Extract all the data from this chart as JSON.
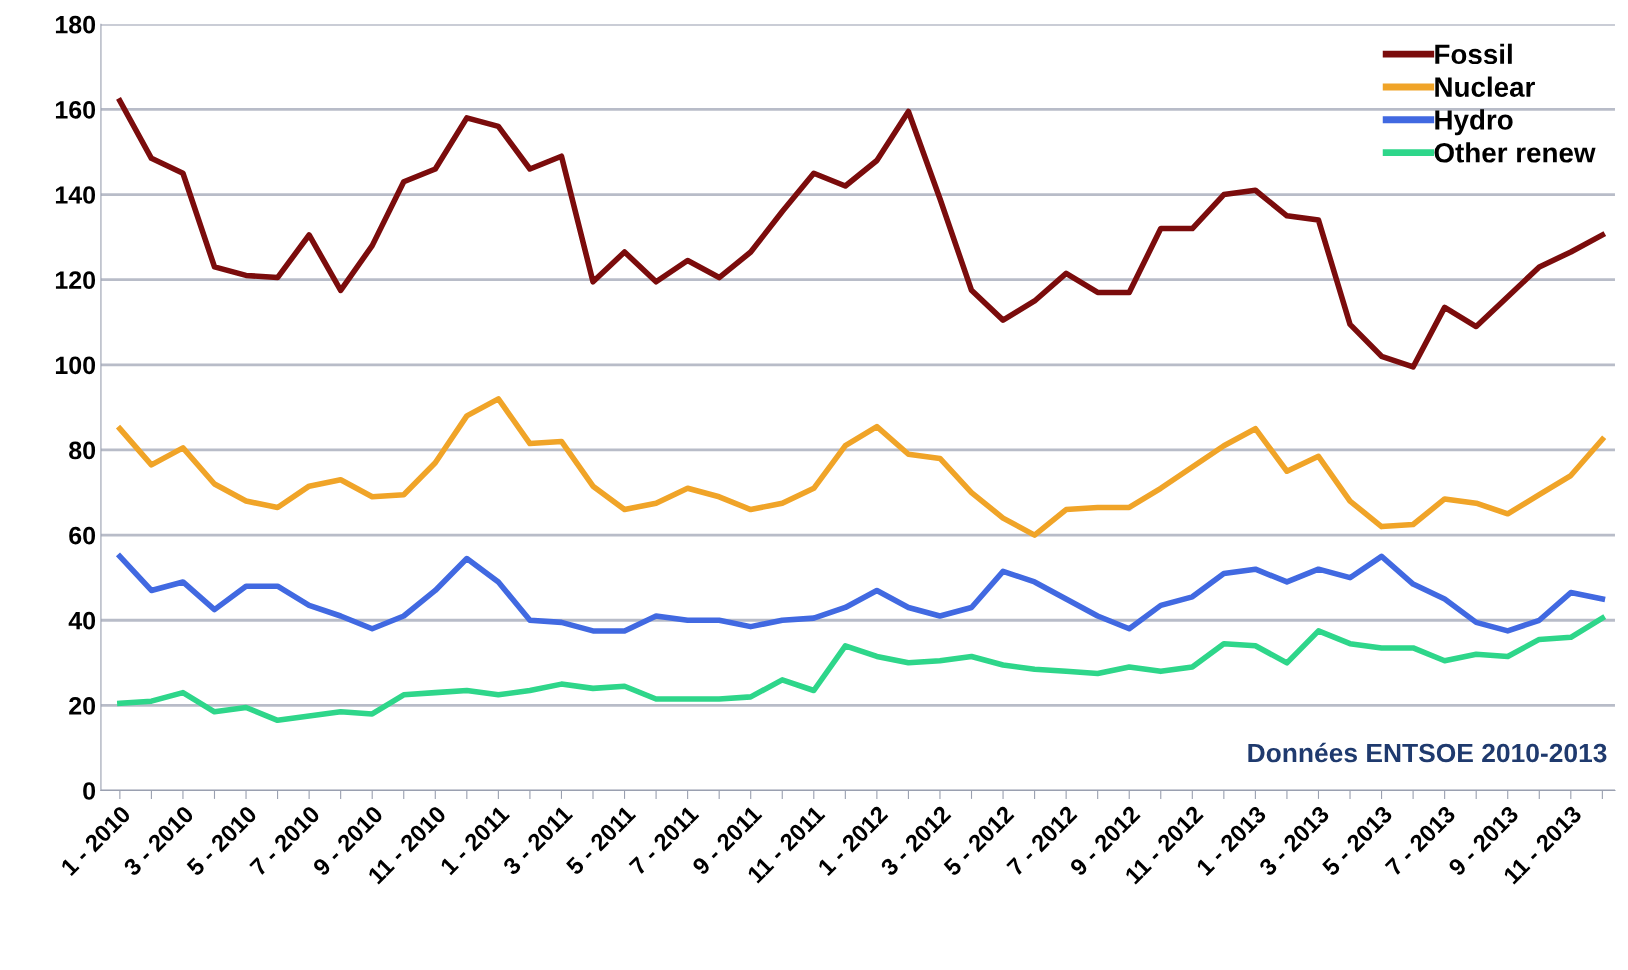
{
  "chart_data": {
    "type": "line",
    "categories": [
      "1 - 2010",
      null,
      "3 - 2010",
      null,
      "5 - 2010",
      null,
      "7 - 2010",
      null,
      "9 - 2010",
      null,
      "11 - 2010",
      null,
      "1 - 2011",
      null,
      "3 - 2011",
      null,
      "5 - 2011",
      null,
      "7 - 2011",
      null,
      "9 - 2011",
      null,
      "11 - 2011",
      null,
      "1 - 2012",
      null,
      "3 - 2012",
      null,
      "5 - 2012",
      null,
      "7 - 2012",
      null,
      "9 - 2012",
      null,
      "11 - 2012",
      null,
      "1 - 2013",
      null,
      "3 - 2013",
      null,
      "5 - 2013",
      null,
      "7 - 2013",
      null,
      "9 - 2013",
      null,
      "11 - 2013",
      null
    ],
    "series": [
      {
        "name": "Fossil",
        "color": "#7b0c0c",
        "values": [
          162,
          148.5,
          145,
          123,
          121,
          120.5,
          130.5,
          117.5,
          128,
          143,
          146,
          158,
          156,
          146,
          149,
          119.5,
          126.5,
          119.5,
          124.5,
          120.5,
          126.5,
          136,
          145,
          142,
          148,
          159.5,
          139,
          117.5,
          110.5,
          115,
          121.5,
          117,
          117,
          132,
          132,
          140,
          141,
          135,
          134,
          109.5,
          102,
          99.5,
          113.5,
          109,
          116,
          123,
          126.5,
          130.5
        ]
      },
      {
        "name": "Nuclear",
        "color": "#f0a428",
        "values": [
          85,
          76.5,
          80.5,
          72,
          68,
          66.5,
          71.5,
          73,
          69,
          69.5,
          77,
          88,
          92,
          81.5,
          82,
          71.5,
          66,
          67.5,
          71,
          69,
          66,
          67.5,
          71,
          81,
          85.5,
          79,
          78,
          70,
          64,
          60,
          66,
          66.5,
          66.5,
          71,
          76,
          81,
          85,
          75,
          78.5,
          68,
          62,
          62.5,
          68.5,
          67.5,
          65,
          69.5,
          74,
          82.5
        ]
      },
      {
        "name": "Hydro",
        "color": "#4169e1",
        "values": [
          55,
          47,
          49,
          42.5,
          48,
          48,
          43.5,
          41,
          38,
          41,
          47,
          54.5,
          49,
          40,
          39.5,
          37.5,
          37.5,
          41,
          40,
          40,
          38.5,
          40,
          40.5,
          43,
          47,
          43,
          41,
          43,
          51.5,
          49,
          45,
          41,
          38,
          43.5,
          45.5,
          51,
          52,
          49,
          52,
          50,
          55,
          48.5,
          45,
          39.5,
          37.5,
          40,
          46.5,
          45
        ]
      },
      {
        "name": "Other renew",
        "color": "#2ed68a",
        "values": [
          20.5,
          21,
          23,
          18.5,
          19.5,
          16.5,
          17.5,
          18.5,
          18,
          22.5,
          23,
          23.5,
          22.5,
          23.5,
          25,
          24,
          24.5,
          21.5,
          21.5,
          21.5,
          22,
          26,
          23.5,
          34,
          31.5,
          30,
          30.5,
          31.5,
          29.5,
          28.5,
          28,
          27.5,
          29,
          28,
          29,
          34.5,
          34,
          30,
          37.5,
          34.5,
          33.5,
          33.5,
          30.5,
          32,
          31.5,
          35.5,
          36,
          40.5
        ]
      }
    ],
    "ylim": [
      0,
      180
    ],
    "yticks": [
      0,
      20,
      40,
      60,
      80,
      100,
      120,
      140,
      160,
      180
    ],
    "grid": "y",
    "legend": "top right",
    "marker": "none",
    "line_style": "solid",
    "annotations": [
      "Données ENTSOE 2010-2013"
    ]
  }
}
